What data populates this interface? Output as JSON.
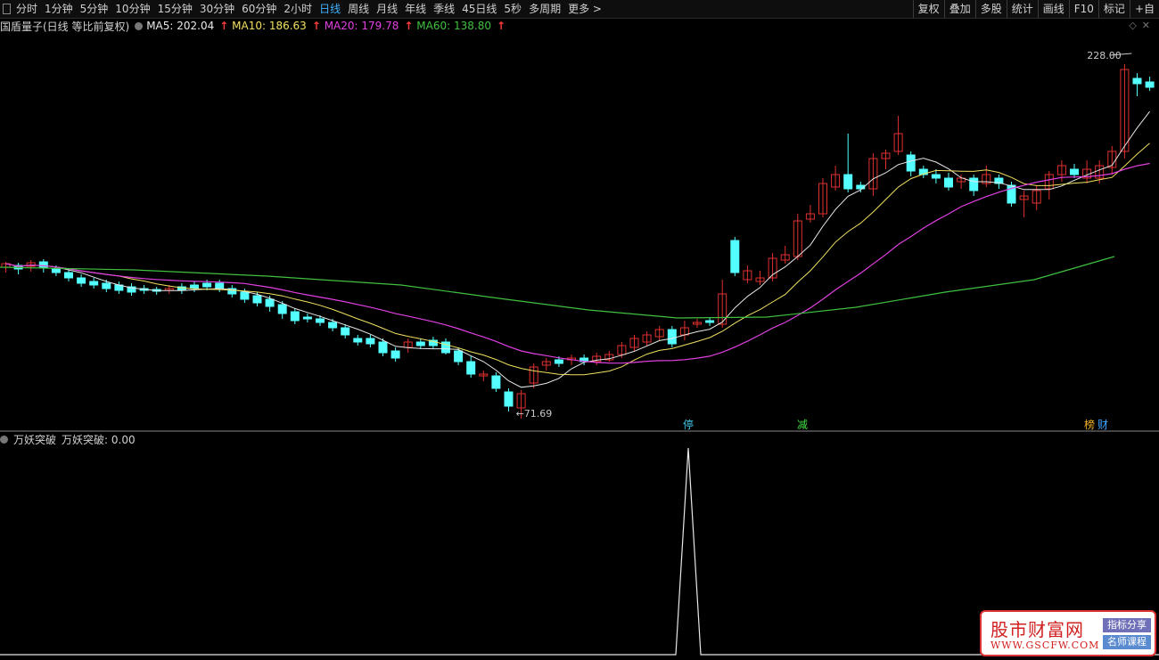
{
  "toolbar": {
    "periods": [
      "分时",
      "1分钟",
      "5分钟",
      "10分钟",
      "15分钟",
      "30分钟",
      "60分钟",
      "2小时",
      "日线",
      "周线",
      "月线",
      "年线",
      "季线",
      "45日线",
      "5秒",
      "多周期",
      "更多 >"
    ],
    "active_period": "日线",
    "right_tools": [
      "复权",
      "叠加",
      "多股",
      "统计",
      "画线",
      "F10",
      "标记",
      "+自"
    ]
  },
  "main_chart": {
    "title": "国盾量子(日线 等比前复权)",
    "ma": [
      {
        "label": "MA5: 202.04",
        "color": "#e8e8e8"
      },
      {
        "label": "MA10: 186.63",
        "color": "#f0e060"
      },
      {
        "label": "MA20: 179.78",
        "color": "#e040e0"
      },
      {
        "label": "MA60: 138.80",
        "color": "#40c040"
      }
    ],
    "high_label": "228.00",
    "low_label": "71.69",
    "markers": [
      {
        "text": "停",
        "color": "#40c8e8"
      },
      {
        "text": "减",
        "color": "#40e040"
      },
      {
        "text": "榜",
        "color": "#f0b020"
      },
      {
        "text": "财",
        "color": "#40a8ff"
      }
    ],
    "colors": {
      "up": "#e03030",
      "down": "#54ffff",
      "ma5": "#e8e8e8",
      "ma10": "#f0e060",
      "ma20": "#e040e0",
      "ma60": "#40c040"
    }
  },
  "sub_chart": {
    "indicator": "万妖突破",
    "value_label": "万妖突破: 0.00",
    "signal": {
      "value": 1,
      "bar_index": 52
    }
  },
  "watermark": {
    "cn": "股市财富网",
    "url": "WWW.GSCFW.COM",
    "tag1": "指标分享",
    "tag2": "名师课程"
  }
}
